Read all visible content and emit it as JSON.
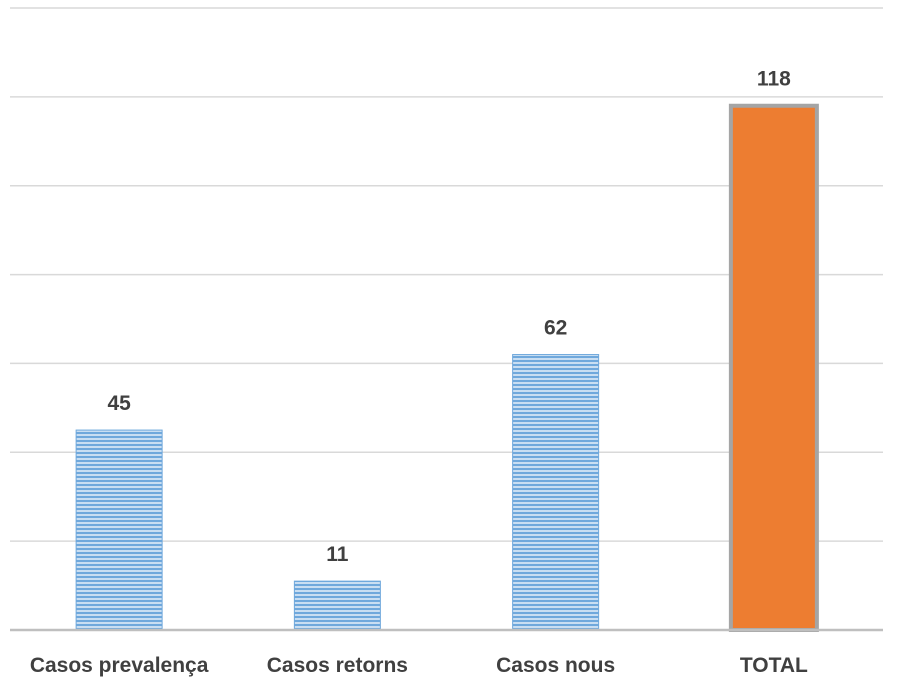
{
  "chart_data": {
    "type": "bar",
    "title": "",
    "xlabel": "",
    "ylabel": "",
    "categories": [
      "Casos prevalença",
      "Casos retorns",
      "Casos nous",
      "TOTAL"
    ],
    "values": [
      45,
      11,
      62,
      118
    ],
    "value_labels": [
      "45",
      "11",
      "62",
      "118"
    ],
    "ylim": [
      0,
      140
    ],
    "grid": true,
    "legend": "none",
    "bar_styles": [
      "striped-blue",
      "striped-blue",
      "striped-blue",
      "solid-orange"
    ],
    "colors": {
      "stripe_blue": "#6fa8dc",
      "stripe_light": "#c9def2",
      "orange": "#ed7d31",
      "orange_border": "#a5a5a5",
      "gridline": "#d9d9d9",
      "axis": "#bfbfbf",
      "label_text": "#404040"
    }
  }
}
